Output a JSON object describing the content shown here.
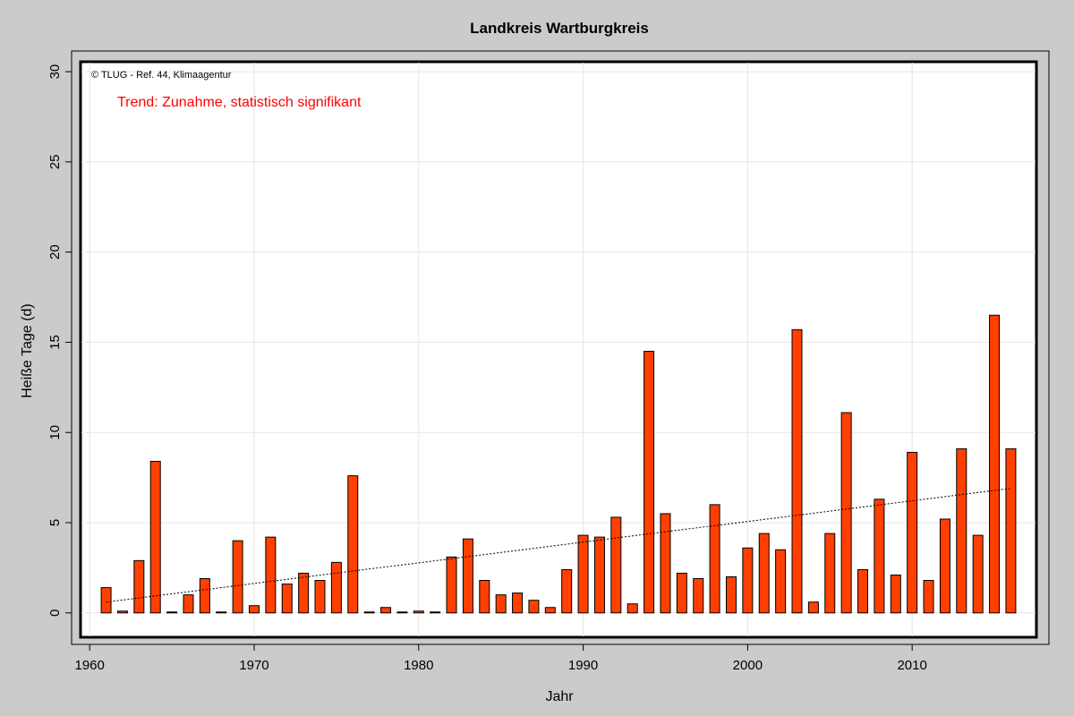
{
  "chart_data": {
    "type": "bar",
    "title": "Landkreis Wartburgkreis",
    "xlabel": "Jahr",
    "ylabel": "Heiße Tage (d)",
    "copyright": "© TLUG - Ref. 44, Klimaagentur",
    "annotation": "Trend: Zunahme, statistisch signifikant",
    "colors": {
      "background": "#cbcbcb",
      "bar": "#ff4000",
      "annotation": "#ff0000",
      "grid": "#e6e6e6"
    },
    "grid": true,
    "xlim": [
      1959.5,
      2017.5
    ],
    "ylim": [
      -1.3,
      30.5
    ],
    "xticks": [
      1960,
      1970,
      1980,
      1990,
      2000,
      2010
    ],
    "yticks": [
      0,
      5,
      10,
      15,
      20,
      25,
      30
    ],
    "trend": {
      "x": [
        1961,
        2016
      ],
      "y": [
        0.6,
        6.9
      ]
    },
    "series": [
      {
        "x": [
          1961,
          1962,
          1963,
          1964,
          1965,
          1966,
          1967,
          1968,
          1969,
          1970,
          1971,
          1972,
          1973,
          1974,
          1975,
          1976,
          1977,
          1978,
          1979,
          1980,
          1981,
          1982,
          1983,
          1984,
          1985,
          1986,
          1987,
          1988,
          1989,
          1990,
          1991,
          1992,
          1993,
          1994,
          1995,
          1996,
          1997,
          1998,
          1999,
          2000,
          2001,
          2002,
          2003,
          2004,
          2005,
          2006,
          2007,
          2008,
          2009,
          2010,
          2011,
          2012,
          2013,
          2014,
          2015,
          2016
        ],
        "values": [
          1.4,
          0.1,
          2.9,
          8.4,
          0.0,
          1.0,
          1.9,
          0.05,
          4.0,
          0.4,
          4.2,
          1.6,
          2.2,
          1.8,
          2.8,
          7.6,
          0.05,
          0.3,
          0.0,
          0.1,
          0.05,
          3.1,
          4.1,
          1.8,
          1.0,
          1.1,
          0.7,
          0.3,
          2.4,
          4.3,
          4.2,
          5.3,
          0.5,
          14.5,
          5.5,
          2.2,
          1.9,
          6.0,
          2.0,
          3.6,
          4.4,
          3.5,
          15.7,
          0.6,
          4.4,
          11.1,
          2.4,
          6.3,
          2.1,
          8.9,
          1.8,
          5.2,
          9.1,
          4.3,
          16.5,
          9.1
        ]
      }
    ]
  }
}
